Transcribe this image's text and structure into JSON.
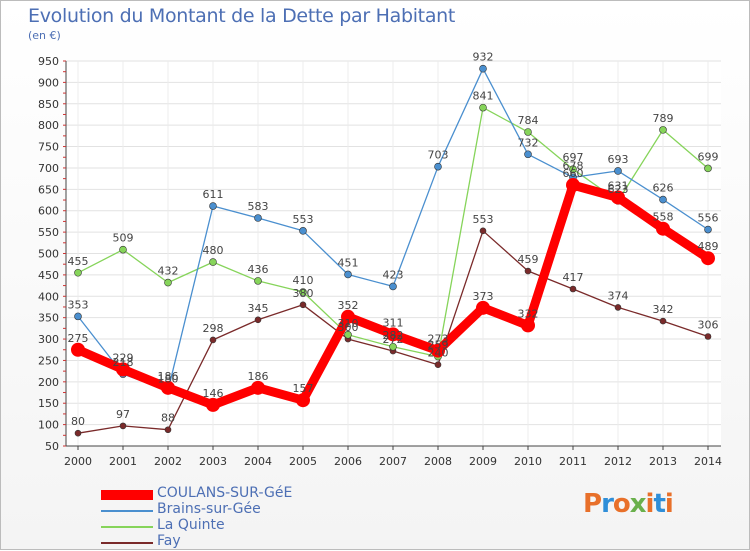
{
  "title": "Evolution du Montant de la Dette par Habitant",
  "subtitle": "(en €)",
  "logo": {
    "text": "Proxiti",
    "colors": [
      "#e8702a",
      "#2f8ed8",
      "#e8702a",
      "#6ab04c",
      "#e8702a",
      "#2f8ed8",
      "#e8702a"
    ]
  },
  "chart_data": {
    "type": "line",
    "title": "Evolution du Montant de la Dette par Habitant",
    "ylabel": "(en €)",
    "x": [
      "2000",
      "2001",
      "2002",
      "2003",
      "2004",
      "2005",
      "2006",
      "2007",
      "2008",
      "2009",
      "2010",
      "2011",
      "2012",
      "2013",
      "2014"
    ],
    "ylim": [
      50,
      950
    ],
    "yticks": [
      50,
      100,
      150,
      200,
      250,
      300,
      350,
      400,
      450,
      500,
      550,
      600,
      650,
      700,
      750,
      800,
      850,
      900,
      950
    ],
    "grid": true,
    "legend_position": "bottom-left",
    "series": [
      {
        "name": "Fay",
        "color": "#7a2a2a",
        "width": 1.3,
        "marker": 3,
        "values": [
          80,
          97,
          88,
          298,
          345,
          380,
          300,
          272,
          240,
          553,
          459,
          417,
          374,
          342,
          306
        ]
      },
      {
        "name": "La Quinte",
        "color": "#86d45a",
        "width": 1.3,
        "marker": 3.5,
        "values": [
          455,
          509,
          432,
          480,
          436,
          410,
          310,
          282,
          259,
          841,
          784,
          697,
          623,
          789,
          699
        ]
      },
      {
        "name": "Brains-sur-Gée",
        "color": "#4a8fcf",
        "width": 1.3,
        "marker": 3.5,
        "values": [
          353,
          218,
          180,
          611,
          583,
          553,
          451,
          423,
          703,
          932,
          732,
          678,
          693,
          626,
          556
        ]
      },
      {
        "name": "COULANS-SUR-GéE",
        "color": "#ff0000",
        "width": 9,
        "marker": 7,
        "values": [
          275,
          229,
          186,
          146,
          186,
          157,
          352,
          311,
          273,
          373,
          332,
          660,
          631,
          558,
          489
        ]
      }
    ],
    "legend_order": [
      "COULANS-SUR-GéE",
      "Brains-sur-Gée",
      "La Quinte",
      "Fay"
    ]
  }
}
